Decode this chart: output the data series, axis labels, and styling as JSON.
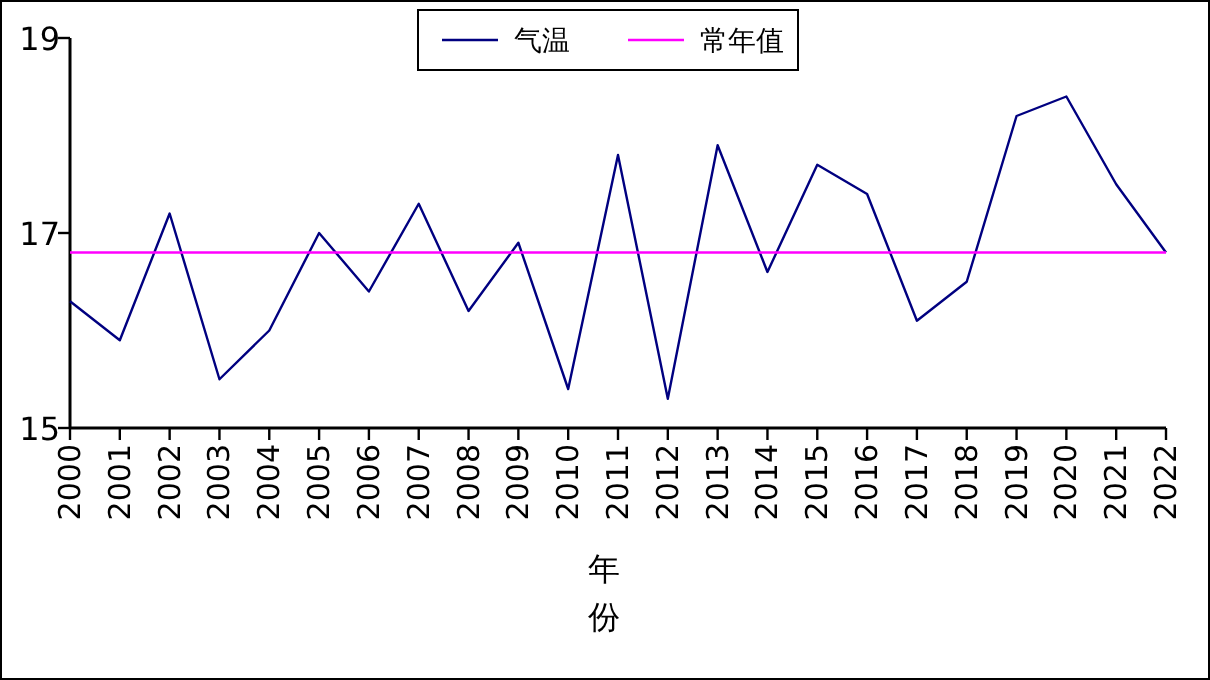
{
  "chart_data": {
    "type": "line",
    "categories": [
      "2000",
      "2001",
      "2002",
      "2003",
      "2004",
      "2005",
      "2006",
      "2007",
      "2008",
      "2009",
      "2010",
      "2011",
      "2012",
      "2013",
      "2014",
      "2015",
      "2016",
      "2017",
      "2018",
      "2019",
      "2020",
      "2021",
      "2022"
    ],
    "series": [
      {
        "name": "气温",
        "color": "#000080",
        "values": [
          16.3,
          15.9,
          17.2,
          15.5,
          16.0,
          17.0,
          16.4,
          17.3,
          16.2,
          16.9,
          15.4,
          17.8,
          15.3,
          17.9,
          16.6,
          17.7,
          17.4,
          16.1,
          16.5,
          18.2,
          18.4,
          17.5,
          16.8
        ]
      },
      {
        "name": "常年值",
        "color": "#ff00ff",
        "values": [
          16.8,
          16.8,
          16.8,
          16.8,
          16.8,
          16.8,
          16.8,
          16.8,
          16.8,
          16.8,
          16.8,
          16.8,
          16.8,
          16.8,
          16.8,
          16.8,
          16.8,
          16.8,
          16.8,
          16.8,
          16.8,
          16.8,
          16.8
        ]
      }
    ],
    "xlabel": "年份",
    "ylim": [
      15,
      19
    ],
    "yticks": [
      15,
      17,
      19
    ],
    "legend": "top"
  }
}
